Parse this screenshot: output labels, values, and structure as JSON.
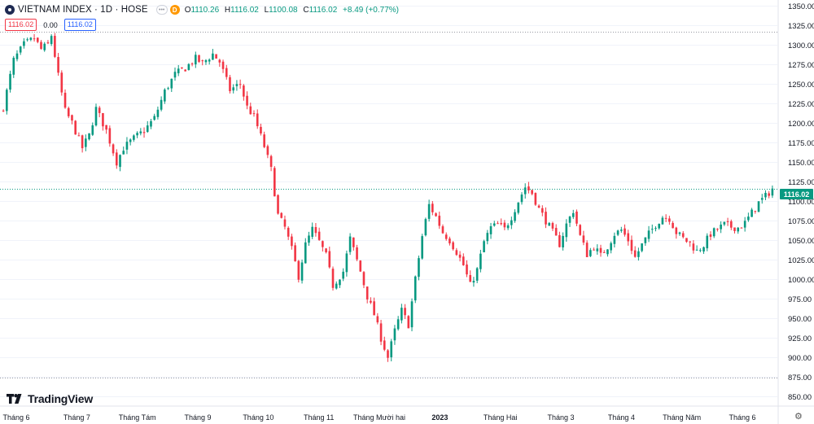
{
  "header": {
    "symbol": "VIETNAM INDEX · 1D · HOSE",
    "badge": "D",
    "open_label": "O",
    "open": "1110.26",
    "high_label": "H",
    "high": "1116.02",
    "low_label": "L",
    "low": "1100.08",
    "close_label": "C",
    "close": "1116.02",
    "change": "+8.49 (+0.77%)"
  },
  "indicator_row": {
    "sell": "1116.02",
    "spread": "0.00",
    "buy": "1116.02"
  },
  "brand": "TradingView",
  "last_price_label": "1116.02",
  "colors": {
    "up": "#089981",
    "down": "#f23645",
    "grid": "#f0f3fa",
    "text": "#131722"
  },
  "chart_data": {
    "type": "candlestick",
    "title": "VIETNAM INDEX · 1D · HOSE",
    "ylim": [
      840,
      1357
    ],
    "y_ticks": [
      850,
      875,
      900,
      925,
      950,
      975,
      1000,
      1025,
      1050,
      1075,
      1100,
      1125,
      1150,
      1175,
      1200,
      1225,
      1250,
      1275,
      1300,
      1325,
      1350
    ],
    "x_labels": [
      "Tháng 6",
      "Tháng 7",
      "Tháng Tám",
      "Tháng 9",
      "Tháng 10",
      "Tháng 11",
      "Tháng Mười hai",
      "2023",
      "Tháng Hai",
      "Tháng 3",
      "Tháng 4",
      "Tháng Năm",
      "Tháng 6"
    ],
    "x_label_bold": [
      false,
      false,
      false,
      false,
      false,
      false,
      false,
      true,
      false,
      false,
      false,
      false,
      false
    ],
    "reference_lines": [
      1316.6,
      874.8
    ],
    "last_price": 1116.02,
    "anchor_points": [
      [
        0,
        1220
      ],
      [
        3,
        1280
      ],
      [
        6,
        1300
      ],
      [
        9,
        1308
      ],
      [
        11,
        1294
      ],
      [
        13,
        1300
      ],
      [
        14,
        1312
      ],
      [
        16,
        1260
      ],
      [
        18,
        1215
      ],
      [
        20,
        1200
      ],
      [
        23,
        1168
      ],
      [
        25,
        1184
      ],
      [
        27,
        1218
      ],
      [
        30,
        1190
      ],
      [
        33,
        1150
      ],
      [
        35,
        1168
      ],
      [
        38,
        1180
      ],
      [
        41,
        1190
      ],
      [
        44,
        1206
      ],
      [
        47,
        1240
      ],
      [
        50,
        1262
      ],
      [
        53,
        1270
      ],
      [
        56,
        1282
      ],
      [
        58,
        1276
      ],
      [
        61,
        1288
      ],
      [
        63,
        1278
      ],
      [
        66,
        1242
      ],
      [
        69,
        1250
      ],
      [
        71,
        1220
      ],
      [
        73,
        1208
      ],
      [
        76,
        1170
      ],
      [
        78,
        1140
      ],
      [
        80,
        1082
      ],
      [
        82,
        1066
      ],
      [
        84,
        1038
      ],
      [
        86,
        1004
      ],
      [
        88,
        1044
      ],
      [
        90,
        1064
      ],
      [
        92,
        1048
      ],
      [
        94,
        1030
      ],
      [
        96,
        992
      ],
      [
        99,
        1010
      ],
      [
        101,
        1052
      ],
      [
        104,
        1010
      ],
      [
        106,
        978
      ],
      [
        108,
        955
      ],
      [
        110,
        925
      ],
      [
        112,
        900
      ],
      [
        114,
        934
      ],
      [
        116,
        960
      ],
      [
        118,
        942
      ],
      [
        120,
        1000
      ],
      [
        122,
        1055
      ],
      [
        124,
        1095
      ],
      [
        126,
        1080
      ],
      [
        128,
        1060
      ],
      [
        130,
        1050
      ],
      [
        132,
        1035
      ],
      [
        134,
        1018
      ],
      [
        136,
        992
      ],
      [
        138,
        1012
      ],
      [
        140,
        1048
      ],
      [
        142,
        1066
      ],
      [
        144,
        1070
      ],
      [
        146,
        1064
      ],
      [
        148,
        1080
      ],
      [
        150,
        1100
      ],
      [
        152,
        1118
      ],
      [
        154,
        1110
      ],
      [
        156,
        1090
      ],
      [
        158,
        1075
      ],
      [
        160,
        1060
      ],
      [
        162,
        1045
      ],
      [
        164,
        1070
      ],
      [
        166,
        1088
      ],
      [
        168,
        1055
      ],
      [
        170,
        1032
      ],
      [
        172,
        1042
      ],
      [
        174,
        1030
      ],
      [
        176,
        1042
      ],
      [
        178,
        1058
      ],
      [
        180,
        1063
      ],
      [
        182,
        1050
      ],
      [
        184,
        1028
      ],
      [
        186,
        1044
      ],
      [
        188,
        1058
      ],
      [
        190,
        1070
      ],
      [
        192,
        1080
      ],
      [
        194,
        1078
      ],
      [
        196,
        1060
      ],
      [
        198,
        1052
      ],
      [
        200,
        1046
      ],
      [
        202,
        1036
      ],
      [
        204,
        1044
      ],
      [
        206,
        1058
      ],
      [
        208,
        1064
      ],
      [
        210,
        1070
      ],
      [
        212,
        1067
      ],
      [
        214,
        1066
      ],
      [
        216,
        1072
      ],
      [
        218,
        1085
      ],
      [
        220,
        1098
      ],
      [
        222,
        1106
      ],
      [
        224,
        1116.02
      ]
    ],
    "candles_count": 225
  }
}
